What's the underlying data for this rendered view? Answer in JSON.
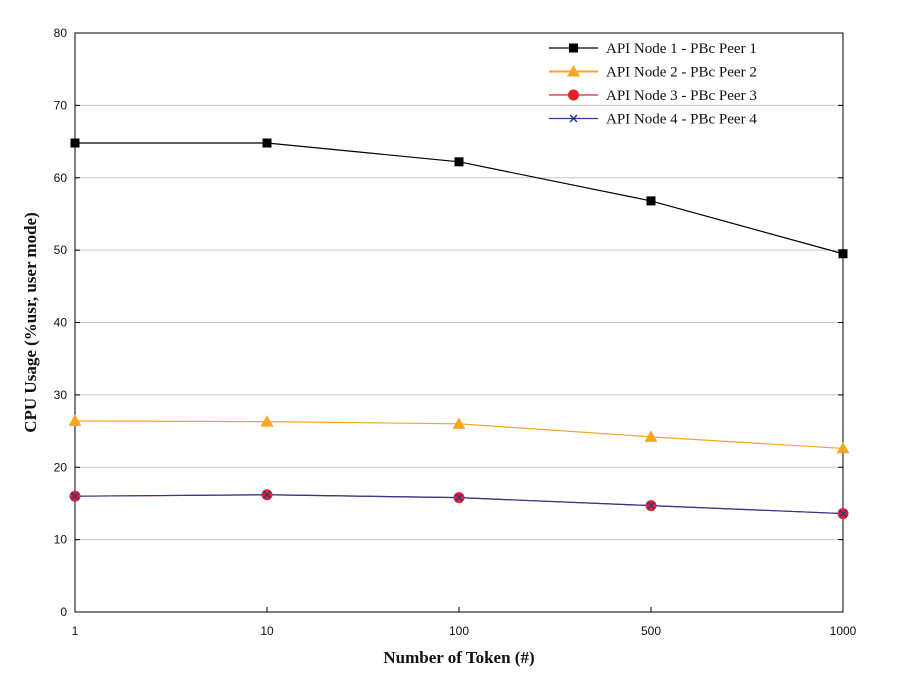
{
  "chart_data": {
    "type": "line",
    "title": "",
    "xlabel": "Number of Token (#)",
    "ylabel": "CPU Usage (%usr, user mode)",
    "categories": [
      "1",
      "10",
      "100",
      "500",
      "1000"
    ],
    "ylim": [
      0,
      80
    ],
    "yticks": [
      0,
      10,
      20,
      30,
      40,
      50,
      60,
      70,
      80
    ],
    "grid": true,
    "legend_position": "top-right",
    "series": [
      {
        "name": "API Node 1 - PBc Peer 1",
        "values": [
          64.8,
          64.8,
          62.2,
          56.8,
          49.5
        ],
        "color": "#000000",
        "marker": "square"
      },
      {
        "name": "API Node 2 - PBc Peer 2",
        "values": [
          26.4,
          26.3,
          26.0,
          24.2,
          22.6
        ],
        "color": "#f5a623",
        "marker": "triangle"
      },
      {
        "name": "API Node 3 - PBc Peer 3",
        "values": [
          16.0,
          16.2,
          15.8,
          14.7,
          13.6
        ],
        "color": "#e8202a",
        "marker": "circle"
      },
      {
        "name": "API Node 4 - PBc Peer 4",
        "values": [
          16.0,
          16.2,
          15.8,
          14.7,
          13.6
        ],
        "color": "#2b3a8f",
        "marker": "x"
      }
    ]
  }
}
